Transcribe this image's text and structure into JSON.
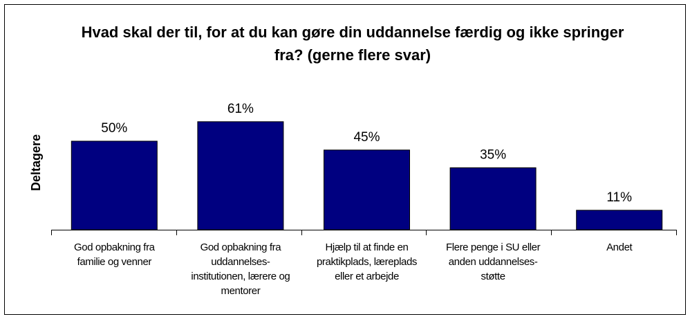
{
  "chart_data": {
    "type": "bar",
    "title": "Hvad skal der til, for at du kan gøre din uddannelse færdig og ikke springer fra? (gerne flere svar)",
    "y_label": "Deltagere",
    "categories": [
      "God opbakning fra familie og venner",
      "God opbakning fra uddannelses-institutionen, lærere og mentorer",
      "Hjælp til at finde en praktikplads, læreplads eller et arbejde",
      "Flere penge i SU eller anden uddannelses-støtte",
      "Andet"
    ],
    "values": [
      50,
      61,
      45,
      35,
      11
    ],
    "value_labels": [
      "50%",
      "61%",
      "45%",
      "35%",
      "11%"
    ],
    "color": "#000080"
  }
}
